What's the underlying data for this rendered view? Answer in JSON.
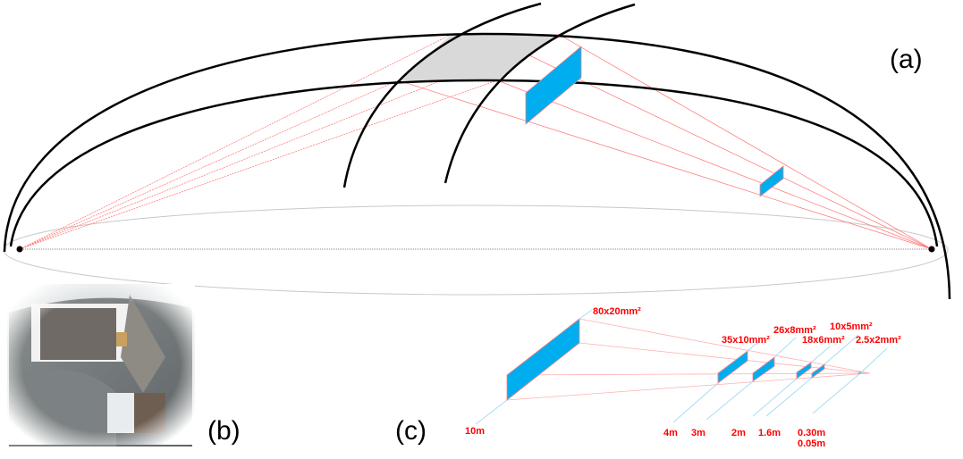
{
  "panels": {
    "a": "(a)",
    "b": "(b)",
    "c": "(c)"
  },
  "colors": {
    "detector": "#00aeef",
    "rays": "#ff8080",
    "mirror": "#d9d9d9",
    "labels": "#ff0000",
    "guide": "#a8dcf5"
  },
  "detectors": [
    {
      "size": "80x20mm²",
      "distance": "10m"
    },
    {
      "size": "35x10mm²",
      "distance": "4m"
    },
    {
      "size": "26x8mm²",
      "distance": "3m"
    },
    {
      "size": "18x6mm²",
      "distance": "2m"
    },
    {
      "size": "10x5mm²",
      "distance": "1.6m"
    },
    {
      "size": "2.5x2mm²",
      "distance": "0.30m"
    }
  ],
  "extra_distance": "0.05m",
  "photo_icon": "experiment-photo"
}
